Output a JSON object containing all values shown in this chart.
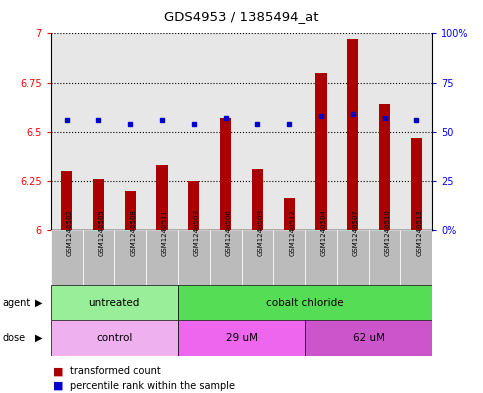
{
  "title": "GDS4953 / 1385494_at",
  "samples": [
    "GSM1240502",
    "GSM1240505",
    "GSM1240508",
    "GSM1240511",
    "GSM1240503",
    "GSM1240506",
    "GSM1240509",
    "GSM1240512",
    "GSM1240504",
    "GSM1240507",
    "GSM1240510",
    "GSM1240513"
  ],
  "red_values": [
    6.3,
    6.26,
    6.2,
    6.33,
    6.25,
    6.57,
    6.31,
    6.16,
    6.8,
    6.97,
    6.64,
    6.47
  ],
  "blue_values": [
    6.56,
    6.56,
    6.54,
    6.56,
    6.54,
    6.57,
    6.54,
    6.54,
    6.58,
    6.59,
    6.57,
    6.56
  ],
  "ylim_left": [
    6.0,
    7.0
  ],
  "ylim_right": [
    0,
    100
  ],
  "yticks_left": [
    6.0,
    6.25,
    6.5,
    6.75,
    7.0
  ],
  "ytick_labels_left": [
    "6",
    "6.25",
    "6.5",
    "6.75",
    "7"
  ],
  "yticks_right": [
    0,
    25,
    50,
    75,
    100
  ],
  "ytick_labels_right": [
    "0%",
    "25",
    "50",
    "75",
    "100%"
  ],
  "agent_labels": [
    "untreated",
    "cobalt chloride"
  ],
  "agent_color_untreated": "#99EE99",
  "agent_color_cobalt": "#55DD55",
  "dose_labels": [
    "control",
    "29 uM",
    "62 uM"
  ],
  "dose_color_control": "#EEB0EE",
  "dose_color_29": "#EE66EE",
  "dose_color_62": "#CC55CC",
  "bar_color": "#AA0000",
  "dot_color": "#0000CC",
  "bar_base": 6.0,
  "legend_red": "transformed count",
  "legend_blue": "percentile rank within the sample",
  "sample_bg_color": "#BBBBBB",
  "plot_bg_color": "#FFFFFF",
  "white": "#FFFFFF"
}
